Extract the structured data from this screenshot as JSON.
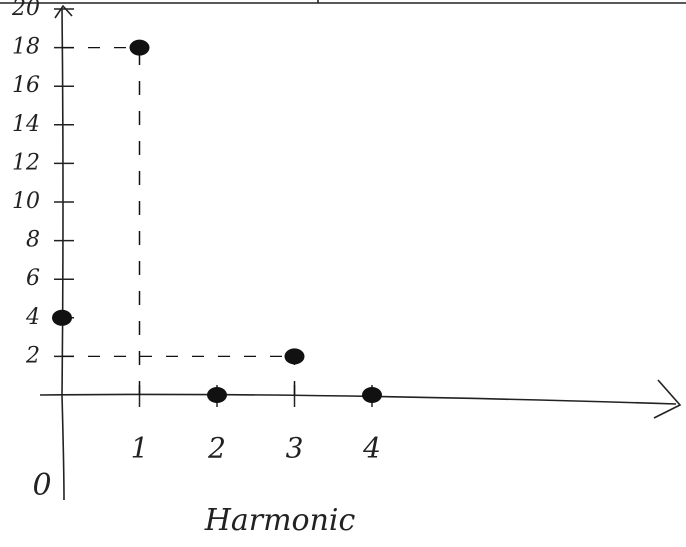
{
  "chart_data": {
    "type": "stem",
    "x_label": "Harmonic",
    "x": [
      0,
      1,
      2,
      3,
      4
    ],
    "values": [
      4,
      18,
      0,
      2,
      0
    ],
    "color": "#111111",
    "xlim": [
      0,
      4
    ],
    "xticks": [
      0,
      1,
      2,
      3,
      4
    ],
    "ylim": [
      0,
      20
    ],
    "yticks": [
      2,
      4,
      6,
      8,
      10,
      12,
      14,
      16,
      18,
      20
    ]
  }
}
